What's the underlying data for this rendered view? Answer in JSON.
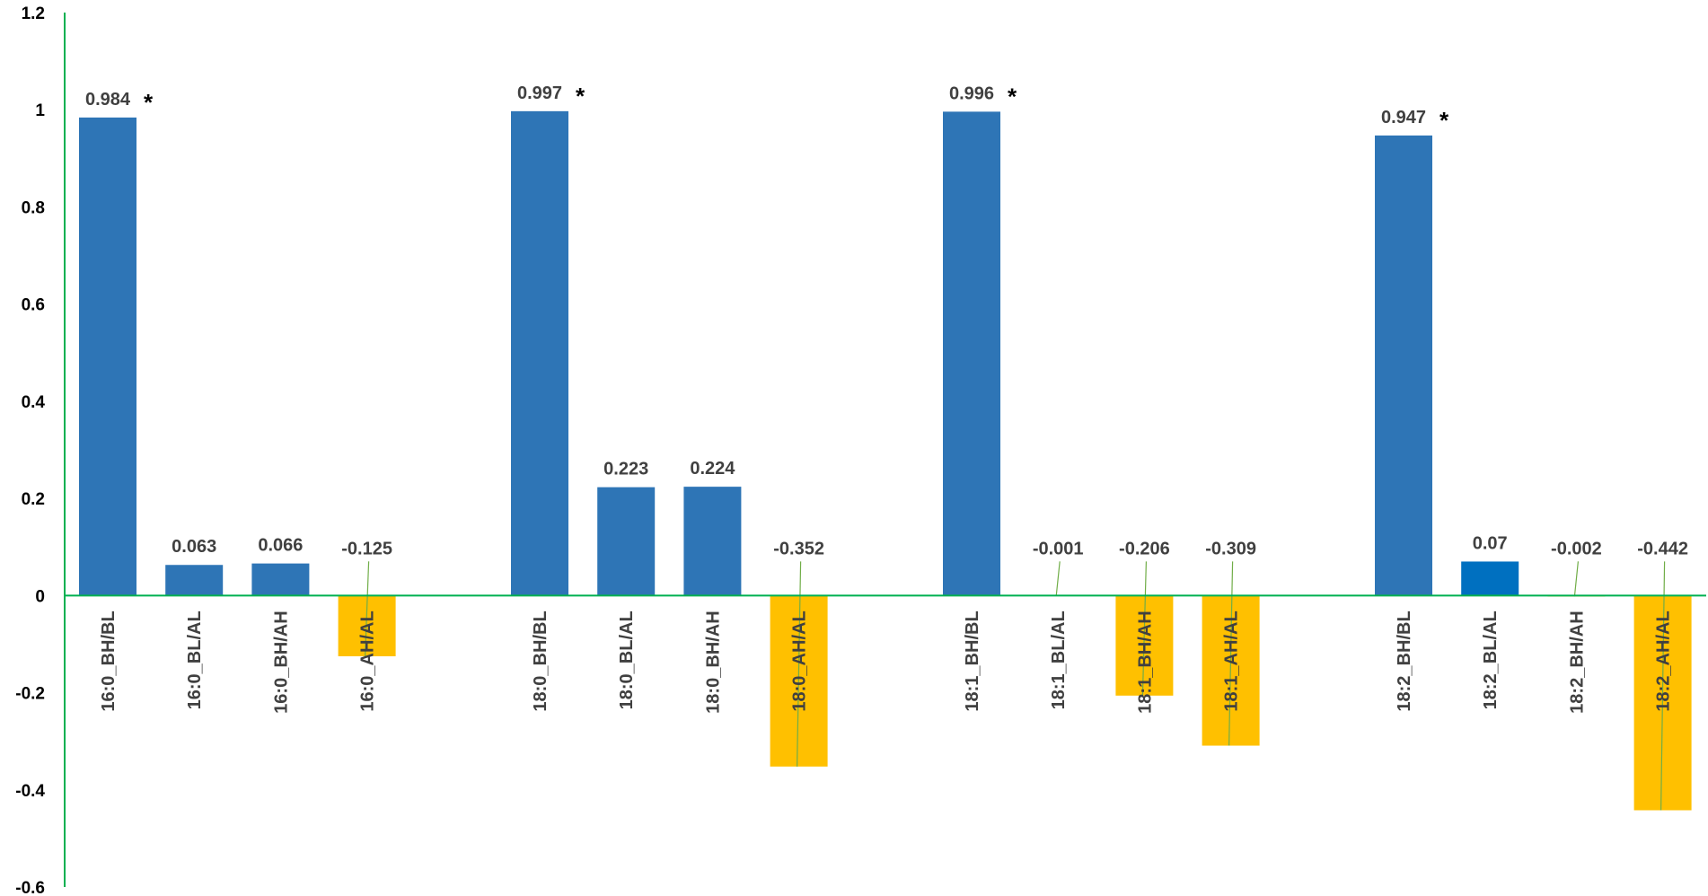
{
  "chart_data": {
    "type": "bar",
    "title": "",
    "xlabel": "",
    "ylabel": "",
    "ylim": [
      -0.6,
      1.2
    ],
    "yticks": [
      1.2,
      1,
      0.8,
      0.6,
      0.4,
      0.2,
      0,
      -0.2,
      -0.4,
      -0.6
    ],
    "grid": false,
    "legend": "none",
    "colors": {
      "positive": "#2E75B6",
      "negative": "#FFC000",
      "highlight": "#0070C0",
      "axis": "#00B050",
      "leader": "#70AD47"
    },
    "groups": [
      {
        "bars": [
          {
            "category": "16:0_BH/BL",
            "value": 0.984,
            "label": "0.984",
            "significance": "*"
          },
          {
            "category": "16:0_BL/AL",
            "value": 0.063,
            "label": "0.063",
            "significance": ""
          },
          {
            "category": "16:0_BH/AH",
            "value": 0.066,
            "label": "0.066",
            "significance": ""
          },
          {
            "category": "16:0_AH/AL",
            "value": -0.125,
            "label": "-0.125",
            "significance": ""
          }
        ]
      },
      {
        "bars": [
          {
            "category": "18:0_BH/BL",
            "value": 0.997,
            "label": "0.997",
            "significance": "*"
          },
          {
            "category": "18:0_BL/AL",
            "value": 0.223,
            "label": "0.223",
            "significance": ""
          },
          {
            "category": "18:0_BH/AH",
            "value": 0.224,
            "label": "0.224",
            "significance": ""
          },
          {
            "category": "18:0_AH/AL",
            "value": -0.352,
            "label": "-0.352",
            "significance": ""
          }
        ]
      },
      {
        "bars": [
          {
            "category": "18:1_BH/BL",
            "value": 0.996,
            "label": "0.996",
            "significance": "*"
          },
          {
            "category": "18:1_BL/AL",
            "value": -0.001,
            "label": "-0.001",
            "significance": ""
          },
          {
            "category": "18:1_BH/AH",
            "value": -0.206,
            "label": "-0.206",
            "significance": ""
          },
          {
            "category": "18:1_AH/AL",
            "value": -0.309,
            "label": "-0.309",
            "significance": ""
          }
        ]
      },
      {
        "bars": [
          {
            "category": "18:2_BH/BL",
            "value": 0.947,
            "label": "0.947",
            "significance": "*"
          },
          {
            "category": "18:2_BL/AL",
            "value": 0.07,
            "label": "0.07",
            "significance": "",
            "highlight": true
          },
          {
            "category": "18:2_BH/AH",
            "value": -0.002,
            "label": "-0.002",
            "significance": ""
          },
          {
            "category": "18:2_AH/AL",
            "value": -0.442,
            "label": "-0.442",
            "significance": ""
          }
        ]
      }
    ]
  }
}
